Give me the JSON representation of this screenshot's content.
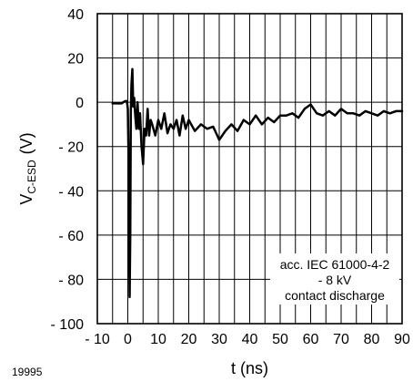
{
  "figure_id": "19995",
  "chart_data": {
    "type": "line",
    "xlabel": "t (ns)",
    "ylabel_main": "V",
    "ylabel_sub": "C-ESD",
    "ylabel_unit": "(V)",
    "xlim": [
      -10,
      90
    ],
    "ylim": [
      -100,
      40
    ],
    "x_ticks": [
      -10,
      0,
      10,
      20,
      30,
      40,
      50,
      60,
      70,
      80,
      90
    ],
    "x_tick_labels": [
      "- 10",
      "0",
      "10",
      "20",
      "30",
      "40",
      "50",
      "60",
      "70",
      "80",
      "90"
    ],
    "y_ticks": [
      40,
      20,
      0,
      -20,
      -40,
      -60,
      -80,
      -100
    ],
    "y_tick_labels": [
      "40",
      "20",
      "0",
      "- 20",
      "- 40",
      "- 60",
      "- 80",
      "- 100"
    ],
    "x_minor_step": 5,
    "grid": true,
    "annotation": [
      "acc. IEC 61000-4-2",
      "- 8 kV",
      "contact discharge"
    ],
    "series": [
      {
        "color": "#000000",
        "x": [
          -5,
          -2,
          -1.5,
          -0.8,
          -0.3,
          0,
          0.3,
          0.6,
          0.8,
          1.0,
          1.2,
          1.5,
          1.8,
          2.1,
          2.4,
          2.8,
          3.2,
          3.6,
          4.0,
          4.5,
          5.0,
          5.5,
          6.0,
          6.5,
          7.0,
          7.5,
          8.0,
          9.0,
          10.0,
          11.0,
          12.0,
          13.0,
          14.0,
          15.0,
          16.0,
          17.0,
          18.0,
          19.0,
          20.0,
          22.0,
          24.0,
          26.0,
          28.0,
          30.0,
          32.0,
          34.0,
          36.0,
          38.0,
          40.0,
          42.0,
          44.0,
          46.0,
          48.0,
          50.0,
          52.0,
          54.0,
          56.0,
          58.0,
          60.0,
          62.0,
          64.0,
          66.0,
          68.0,
          70.0,
          72.0,
          74.0,
          76.0,
          78.0,
          80.0,
          82.0,
          84.0,
          86.0,
          88.0,
          90.0
        ],
        "y": [
          -0.5,
          -0.5,
          0,
          0.5,
          0.5,
          -3,
          -30,
          -88,
          -60,
          -5,
          8,
          15,
          -2,
          2,
          -5,
          -12,
          0,
          -12,
          -5,
          -20,
          -28,
          -12,
          -15,
          -3,
          -15,
          -8,
          -10,
          -15,
          -8,
          -12,
          -5,
          -14,
          -10,
          -12,
          -8,
          -15,
          -6,
          -12,
          -8,
          -13,
          -10,
          -12,
          -11,
          -17,
          -13,
          -10,
          -13,
          -8,
          -10,
          -6,
          -10,
          -7,
          -9,
          -6,
          -6,
          -5,
          -7,
          -3,
          -1,
          -5,
          -6,
          -4,
          -6,
          -3,
          -5,
          -5,
          -6,
          -4,
          -5,
          -6,
          -4,
          -5,
          -4,
          -4
        ]
      }
    ]
  }
}
